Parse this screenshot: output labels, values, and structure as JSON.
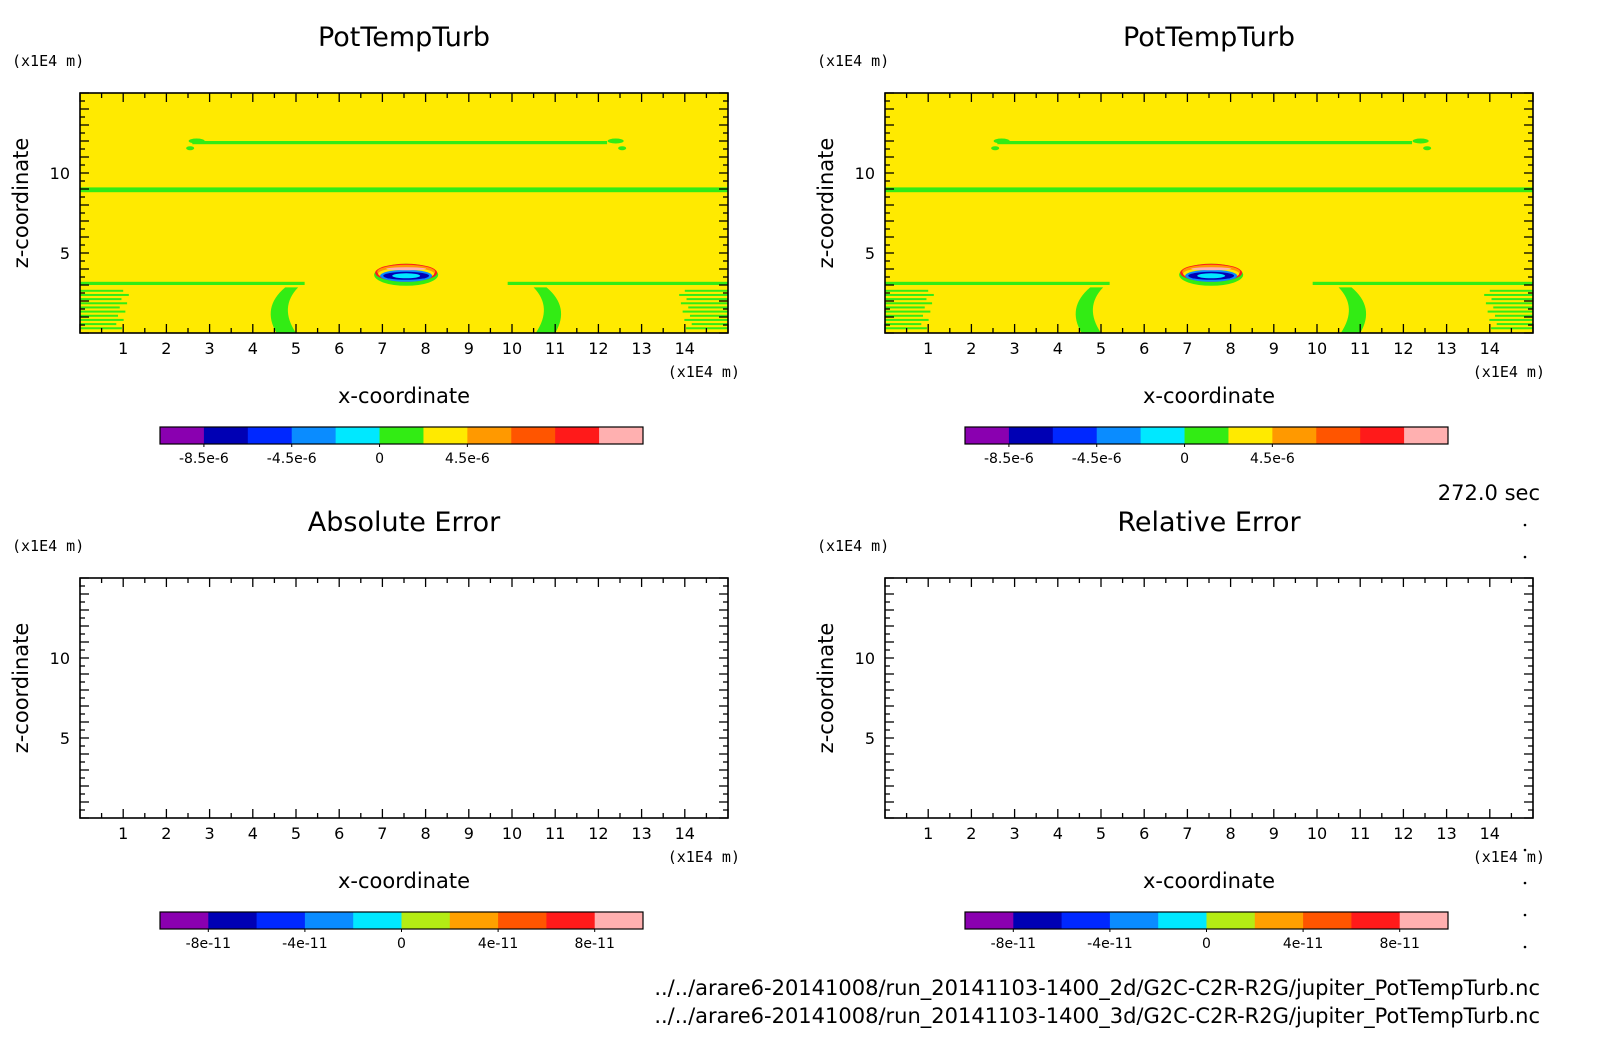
{
  "figure": {
    "time_label": "272.0 sec",
    "file_lines": [
      "../../arare6-20141008/run_20141103-1400_2d/G2C-C2R-R2G/jupiter_PotTempTurb.nc",
      "../../arare6-20141008/run_20141103-1400_3d/G2C-C2R-R2G/jupiter_PotTempTurb.nc"
    ]
  },
  "chart_data": [
    {
      "type": "heatmap",
      "title": "PotTempTurb",
      "xlabel": "x-coordinate",
      "ylabel": "z-coordinate",
      "x_unit": "(x1E4 m)",
      "z_unit": "(x1E4 m)",
      "xlim": [
        0,
        15
      ],
      "ylim": [
        0,
        15
      ],
      "xticks": [
        "1",
        "2",
        "3",
        "4",
        "5",
        "6",
        "7",
        "8",
        "9",
        "10",
        "11",
        "12",
        "13",
        "14"
      ],
      "yticks": [
        "5",
        "10"
      ],
      "colorbar": {
        "colors": [
          "#8a00b0",
          "#0000b4",
          "#0028ff",
          "#0a8cff",
          "#00e8ff",
          "#32ec14",
          "#ffea00",
          "#ff9900",
          "#ff5500",
          "#ff1a1a",
          "#ffb0b0"
        ],
        "labels": [
          "-8.5e-6",
          "-4.5e-6",
          "0",
          "4.5e-6"
        ]
      },
      "field": {
        "background": "#ffea00",
        "bands": [
          {
            "x": [
              2.6,
              12.2
            ],
            "z": [
              11.8,
              12.0
            ],
            "color": "#32ec14"
          },
          {
            "x": [
              0,
              15
            ],
            "z": [
              8.8,
              9.1
            ],
            "color": "#32ec14"
          },
          {
            "x": [
              0,
              5.2
            ],
            "z": [
              3.0,
              3.2
            ],
            "color": "#32ec14"
          },
          {
            "x": [
              9.9,
              15
            ],
            "z": [
              3.0,
              3.2
            ],
            "color": "#32ec14"
          }
        ],
        "anomaly": {
          "x_center": 7.55,
          "z_center": 3.7
        }
      }
    },
    {
      "type": "heatmap",
      "title": "PotTempTurb",
      "xlabel": "x-coordinate",
      "ylabel": "z-coordinate",
      "x_unit": "(x1E4 m)",
      "z_unit": "(x1E4 m)",
      "xlim": [
        0,
        15
      ],
      "ylim": [
        0,
        15
      ],
      "xticks": [
        "1",
        "2",
        "3",
        "4",
        "5",
        "6",
        "7",
        "8",
        "9",
        "10",
        "11",
        "12",
        "13",
        "14"
      ],
      "yticks": [
        "5",
        "10"
      ],
      "colorbar": {
        "colors": [
          "#8a00b0",
          "#0000b4",
          "#0028ff",
          "#0a8cff",
          "#00e8ff",
          "#32ec14",
          "#ffea00",
          "#ff9900",
          "#ff5500",
          "#ff1a1a",
          "#ffb0b0"
        ],
        "labels": [
          "-8.5e-6",
          "-4.5e-6",
          "0",
          "4.5e-6"
        ]
      },
      "field": {
        "background": "#ffea00",
        "bands": [
          {
            "x": [
              2.6,
              12.2
            ],
            "z": [
              11.8,
              12.0
            ],
            "color": "#32ec14"
          },
          {
            "x": [
              0,
              15
            ],
            "z": [
              8.8,
              9.1
            ],
            "color": "#32ec14"
          },
          {
            "x": [
              0,
              5.2
            ],
            "z": [
              3.0,
              3.2
            ],
            "color": "#32ec14"
          },
          {
            "x": [
              9.9,
              15
            ],
            "z": [
              3.0,
              3.2
            ],
            "color": "#32ec14"
          }
        ],
        "anomaly": {
          "x_center": 7.55,
          "z_center": 3.7
        }
      }
    },
    {
      "type": "heatmap",
      "title": "Absolute Error",
      "xlabel": "x-coordinate",
      "ylabel": "z-coordinate",
      "x_unit": "(x1E4 m)",
      "z_unit": "(x1E4 m)",
      "xlim": [
        0,
        15
      ],
      "ylim": [
        0,
        15
      ],
      "xticks": [
        "1",
        "2",
        "3",
        "4",
        "5",
        "6",
        "7",
        "8",
        "9",
        "10",
        "11",
        "12",
        "13",
        "14"
      ],
      "yticks": [
        "5",
        "10"
      ],
      "colorbar": {
        "colors": [
          "#8a00b0",
          "#0000b4",
          "#0028ff",
          "#0a8cff",
          "#00e8ff",
          "#b4ec14",
          "#ffa000",
          "#ff5500",
          "#ff1a1a",
          "#ffb0b0"
        ],
        "labels": [
          "-8e-11",
          "-4e-11",
          "0",
          "4e-11",
          "8e-11"
        ]
      },
      "field": null
    },
    {
      "type": "heatmap",
      "title": "Relative Error",
      "xlabel": "x-coordinate",
      "ylabel": "z-coordinate",
      "x_unit": "(x1E4 m)",
      "z_unit": "(x1E4 m)",
      "xlim": [
        0,
        15
      ],
      "ylim": [
        0,
        15
      ],
      "xticks": [
        "1",
        "2",
        "3",
        "4",
        "5",
        "6",
        "7",
        "8",
        "9",
        "10",
        "11",
        "12",
        "13",
        "14"
      ],
      "yticks": [
        "5",
        "10"
      ],
      "colorbar": {
        "colors": [
          "#8a00b0",
          "#0000b4",
          "#0028ff",
          "#0a8cff",
          "#00e8ff",
          "#b4ec14",
          "#ffa000",
          "#ff5500",
          "#ff1a1a",
          "#ffb0b0"
        ],
        "labels": [
          "-8e-11",
          "-4e-11",
          "0",
          "4e-11",
          "8e-11"
        ]
      },
      "field": null
    }
  ]
}
